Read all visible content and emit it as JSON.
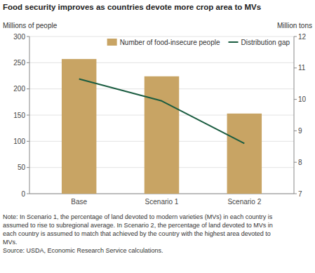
{
  "chart_data": {
    "type": "bar",
    "title": "Food security improves as countries devote more crop area to MVs",
    "categories": [
      "Base",
      "Scenario 1",
      "Scenario 2"
    ],
    "series": [
      {
        "name": "Number of food-insecure people",
        "type": "bar",
        "color": "#c8a464",
        "values": [
          257,
          224,
          153
        ]
      },
      {
        "name": "Distribution gap",
        "type": "line",
        "color": "#1a5c40",
        "values": [
          10.65,
          9.95,
          8.6
        ],
        "axis": "y2"
      }
    ],
    "ylabel": "Millions of people",
    "y2label": "Million tons",
    "ylim": [
      0,
      300
    ],
    "yticks": [
      0,
      50,
      100,
      150,
      200,
      250,
      300
    ],
    "y2lim": [
      7,
      12
    ],
    "y2ticks": [
      7,
      8,
      9,
      10,
      11,
      12
    ],
    "grid": true,
    "legend": "upper right",
    "annotations": [
      "Note: In Scenario 1, the percentage of land devoted to modern varieties (MVs) in each country is",
      "assumed to rise to subregional average. In Scenario 2, the percentage of land devoted to MVs in",
      "each country is assumed to match that achieved by the country with the highest area devoted to",
      "MVs.",
      "Source: USDA, Economic Research Service calculations."
    ]
  }
}
